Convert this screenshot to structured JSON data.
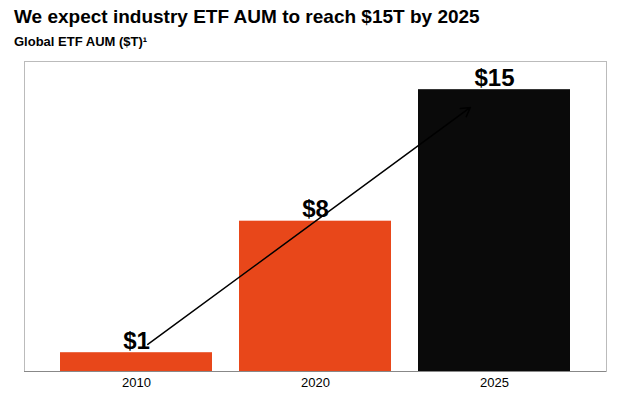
{
  "chart_data": {
    "type": "bar",
    "title": "We expect industry ETF AUM to reach $15T by 2025",
    "ylabel": "Global ETF AUM ($T)¹",
    "categories": [
      "2010",
      "2020",
      "2025"
    ],
    "values": [
      1,
      8,
      15
    ],
    "value_labels": [
      "$1",
      "$8",
      "$15"
    ],
    "colors": [
      "#E8471A",
      "#E8471A",
      "#0A0A0A"
    ],
    "ylim": [
      0,
      16.5
    ],
    "data_labels": true,
    "tick_labels": "x",
    "grid": false
  }
}
